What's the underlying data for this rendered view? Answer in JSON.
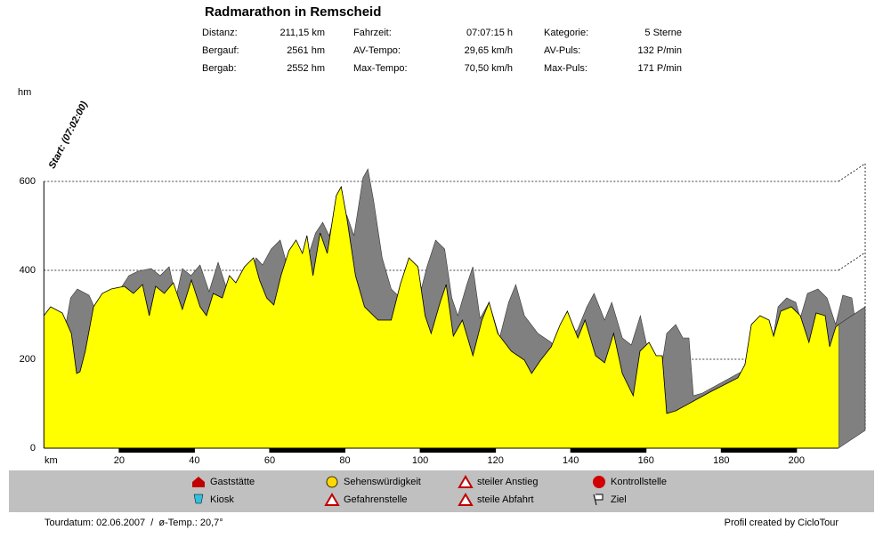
{
  "chart_data": {
    "type": "area",
    "title": "Radmarathon in Remscheid",
    "stats": [
      [
        "Distanz:",
        "211,15 km",
        "Fahrzeit:",
        "07:07:15 h",
        "Kategorie:",
        "5 Sterne"
      ],
      [
        "Bergauf:",
        "2561 hm",
        "AV-Tempo:",
        "29,65 km/h",
        "AV-Puls:",
        "132 P/min"
      ],
      [
        "Bergab:",
        "2552 hm",
        "Max-Tempo:",
        "70,50 km/h",
        "Max-Puls:",
        "171 P/min"
      ]
    ],
    "y_label": "hm",
    "x_label": "km",
    "start_label": "Start: (07:02:00)",
    "x": [
      0,
      1.8,
      4.9,
      7.3,
      8.7,
      9.6,
      11,
      13.2,
      15.5,
      17.9,
      21.4,
      23.8,
      26.2,
      28,
      29.7,
      32,
      34.4,
      36.8,
      39.2,
      41.5,
      43.2,
      45,
      47.4,
      49.3,
      51,
      53.3,
      55.7,
      57.3,
      59.2,
      61.1,
      63,
      65.1,
      67,
      68.7,
      69.9,
      71.5,
      73.4,
      75.3,
      77.7,
      79,
      80.5,
      82.8,
      85.2,
      88.8,
      92.3,
      94.7,
      97,
      99.4,
      101.3,
      102.9,
      105.3,
      106.9,
      108.8,
      111.2,
      114,
      116.4,
      118.3,
      120.6,
      124.2,
      127.7,
      129.6,
      132,
      134.8,
      137.2,
      139.1,
      141.9,
      143.8,
      146.6,
      149,
      151.4,
      153.7,
      156.6,
      158.4,
      160.8,
      162.7,
      164.3,
      165.5,
      167.9,
      177.4,
      184.4,
      186.3,
      188,
      190.3,
      192.7,
      193.9,
      195.8,
      198.6,
      201,
      203.3,
      205.2,
      207.6,
      208.8,
      210.4,
      211.15
    ],
    "values": [
      298,
      318,
      304,
      258,
      168,
      172,
      218,
      318,
      348,
      358,
      364,
      348,
      368,
      298,
      364,
      348,
      372,
      312,
      378,
      318,
      298,
      348,
      338,
      388,
      372,
      408,
      428,
      378,
      338,
      322,
      388,
      444,
      468,
      438,
      478,
      388,
      484,
      438,
      568,
      588,
      518,
      388,
      318,
      288,
      288,
      368,
      428,
      408,
      298,
      258,
      328,
      368,
      252,
      288,
      208,
      288,
      328,
      258,
      218,
      198,
      168,
      198,
      228,
      278,
      308,
      248,
      288,
      208,
      192,
      258,
      168,
      118,
      218,
      238,
      208,
      208,
      78,
      84,
      128,
      158,
      188,
      278,
      298,
      288,
      252,
      308,
      318,
      298,
      238,
      304,
      298,
      228,
      272,
      278
    ],
    "color": "#ffff00",
    "depth_color": "#808080",
    "xlim": [
      0,
      211.15
    ],
    "ylim": [
      0,
      600
    ],
    "xticks": [
      20,
      40,
      60,
      80,
      100,
      120,
      140,
      160,
      180,
      200
    ],
    "yticks": [
      0,
      200,
      400,
      600
    ],
    "grid": true,
    "legend_items": [
      "Gaststätte",
      "Sehenswürdigkeit",
      "steiler Anstieg",
      "Kontrollstelle",
      "Kiosk",
      "Gefahrenstelle",
      "steile Abfahrt",
      "Ziel"
    ],
    "footer_left": "Tourdatum: 02.06.2007  /  ø-Temp.: 20,7°",
    "footer_right": "Profil created by CicloTour"
  }
}
